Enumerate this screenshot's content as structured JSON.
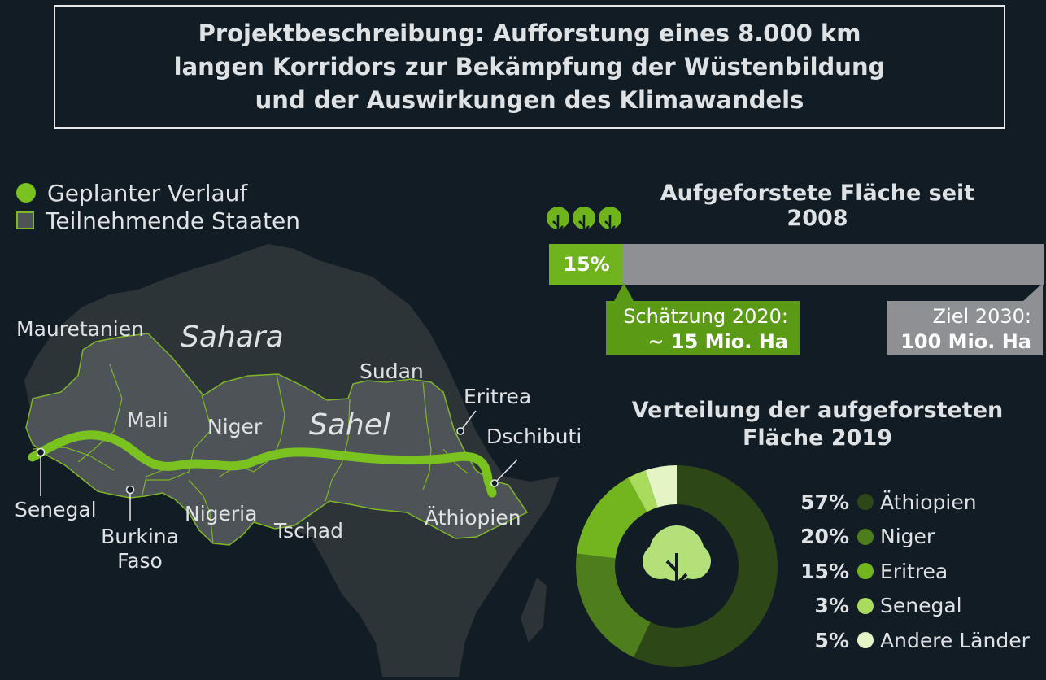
{
  "header": {
    "lines": [
      "Projektbeschreibung: Aufforstung eines 8.000 km",
      "langen Korridors zur Bekämpfung der Wüstenbildung",
      "und der Auswirkungen des Klimawandels"
    ]
  },
  "map": {
    "legend": {
      "route": "Geplanter Verlauf",
      "states": "Teilnehmende Staaten",
      "route_color": "#7ac21f",
      "state_color": "#4d5357"
    },
    "labels": {
      "mauretanien": "Mauretanien",
      "sahara": "Sahara",
      "sudan": "Sudan",
      "eritrea": "Eritrea",
      "mali": "Mali",
      "niger": "Niger",
      "sahel": "Sahel",
      "dschibuti": "Dschibuti",
      "senegal": "Senegal",
      "nigeria": "Nigeria",
      "tschad": "Tschad",
      "aethiopien": "Äthiopien",
      "burkina_line1": "Burkina",
      "burkina_line2": "Faso"
    }
  },
  "chart_data": [
    {
      "type": "bar",
      "title": "Aufgeforstete Fläche seit 2008",
      "value_percent": 15,
      "value_label": "15%",
      "estimate": {
        "label": "Schätzung 2020:",
        "value": "~ 15 Mio. Ha",
        "value_mio_ha": 15
      },
      "goal": {
        "label": "Ziel 2030:",
        "value": "100 Mio. Ha",
        "value_mio_ha": 100
      },
      "colors": {
        "fill": "#6fb31d",
        "track": "#8e9093"
      }
    },
    {
      "type": "pie",
      "title_lines": [
        "Verteilung der aufgeforsteten",
        "Fläche 2019"
      ],
      "series": [
        {
          "label": "Äthiopien",
          "percent": "57%",
          "value": 57,
          "color": "#2e4717"
        },
        {
          "label": "Niger",
          "percent": "20%",
          "value": 20,
          "color": "#4e7d1c"
        },
        {
          "label": "Eritrea",
          "percent": "15%",
          "value": 15,
          "color": "#72b51f"
        },
        {
          "label": "Senegal",
          "percent": "3%",
          "value": 3,
          "color": "#a9dc5c"
        },
        {
          "label": "Andere Länder",
          "percent": "5%",
          "value": 5,
          "color": "#e4f4c4"
        }
      ]
    }
  ]
}
